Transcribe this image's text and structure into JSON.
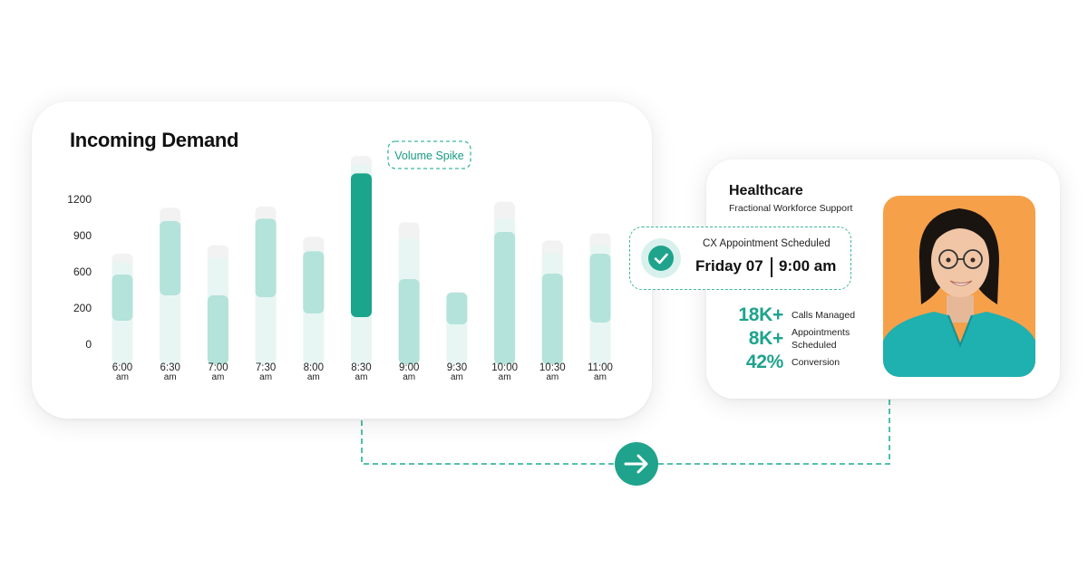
{
  "demand_card": {
    "title": "Incoming Demand",
    "annotation": "Volume Spike"
  },
  "chart_data": {
    "type": "bar",
    "title": "Incoming Demand",
    "categories": [
      "6:00",
      "6:30",
      "7:00",
      "7:30",
      "8:00",
      "8:30",
      "9:00",
      "9:30",
      "10:00",
      "10:30",
      "11:00"
    ],
    "category_sublabel": "am",
    "yticks": [
      0,
      200,
      600,
      900,
      1200
    ],
    "series": [
      {
        "role": "outer range",
        "low": [
          -200,
          -200,
          -200,
          -200,
          -200,
          -200,
          -200,
          -200,
          -200,
          -200,
          -200
        ],
        "high": [
          750,
          1130,
          820,
          1140,
          890,
          1650,
          1010,
          380,
          1180,
          860,
          920
        ]
      },
      {
        "role": "inner range",
        "low": [
          -200,
          -200,
          -200,
          -200,
          -200,
          -200,
          -200,
          -200,
          -200,
          -200,
          -200
        ],
        "high": [
          680,
          1030,
          720,
          1040,
          780,
          1560,
          880,
          300,
          1040,
          760,
          820
        ]
      },
      {
        "role": "demand band",
        "low": [
          130,
          340,
          -200,
          320,
          170,
          150,
          -200,
          110,
          -200,
          -200,
          120
        ],
        "high": [
          570,
          1020,
          340,
          1040,
          770,
          1470,
          520,
          370,
          930,
          580,
          750
        ]
      }
    ],
    "highlight_index": 5,
    "colors": {
      "outer": "#f2f2f2",
      "inner": "#e8f6f3",
      "band": "#b3e3da",
      "highlight": "#1aa58c"
    }
  },
  "appointment": {
    "title": "CX Appointment Scheduled",
    "day": "Friday 07",
    "time": "9:00 am"
  },
  "healthcare_card": {
    "title": "Healthcare",
    "subtitle": "Fractional Workforce Support",
    "stats": [
      {
        "value": "18K+",
        "label_lines": [
          "Calls Managed"
        ]
      },
      {
        "value": "8K+",
        "label_lines": [
          "Appointments",
          "Scheduled"
        ]
      },
      {
        "value": "42%",
        "label_lines": [
          "Conversion"
        ]
      }
    ]
  },
  "icons": {
    "check": "check-icon",
    "arrow": "arrow-right-icon"
  },
  "colors": {
    "accent": "#1fa38c",
    "dashed": "#3fb8a2",
    "photo_background": "#f6a04a",
    "scrubs": "#1fb0b0"
  }
}
